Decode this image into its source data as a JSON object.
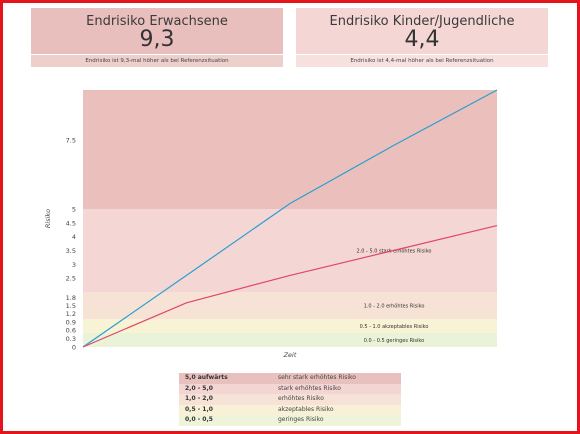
{
  "cards": [
    {
      "title": "Endrisiko Erwachsene",
      "value": "9,3",
      "note": "Endrisiko ist 9,3-mal höher als bei Referenzsituation"
    },
    {
      "title": "Endrisiko Kinder/Jugendliche",
      "value": "4,4",
      "note": "Endrisiko ist 4,4-mal höher als bei Referenzsituation"
    }
  ],
  "colors": {
    "band_high": "#ebc0bc",
    "band_strong": "#f4d7d5",
    "band_elevated": "#f6e3d5",
    "band_acceptable": "#f9f3d6",
    "band_low": "#eaf2d8",
    "line_adult": "#2a9fd0",
    "line_child": "#e0476a",
    "frame": "#e5141b"
  },
  "chart_data": {
    "type": "line",
    "xlabel": "Zeit",
    "ylabel": "Risiko",
    "y_ticks": [
      {
        "label": "0",
        "v": 0
      },
      {
        "label": "0.3",
        "v": 0.3
      },
      {
        "label": "0.6",
        "v": 0.6
      },
      {
        "label": "0.9",
        "v": 0.9
      },
      {
        "label": "1.2",
        "v": 1.2
      },
      {
        "label": "1.5",
        "v": 1.5
      },
      {
        "label": "1.8",
        "v": 1.8
      },
      {
        "label": "2.5",
        "v": 2.5
      },
      {
        "label": "3",
        "v": 3
      },
      {
        "label": "3.5",
        "v": 3.5
      },
      {
        "label": "4",
        "v": 4
      },
      {
        "label": "4.5",
        "v": 4.5
      },
      {
        "label": "5",
        "v": 5
      },
      {
        "label": "7.5",
        "v": 7.5
      }
    ],
    "bands": [
      {
        "from": 5,
        "to": 9.3,
        "label": "",
        "color_key": "band_high"
      },
      {
        "from": 2,
        "to": 5,
        "label": "2.0 - 5.0  stark erhöhtes Risiko",
        "color_key": "band_strong"
      },
      {
        "from": 1,
        "to": 2,
        "label": "1.0 - 2.0  erhöhtes Risiko",
        "color_key": "band_elevated"
      },
      {
        "from": 0.5,
        "to": 1,
        "label": "0.5 - 1.0  akzeptables Risiko",
        "color_key": "band_acceptable"
      },
      {
        "from": 0,
        "to": 0.5,
        "label": "0.0 - 0.5  geringes Risiko",
        "color_key": "band_low"
      }
    ],
    "series": [
      {
        "color_key": "line_adult",
        "x": [
          0,
          0.25,
          0.5,
          0.75,
          1
        ],
        "y": [
          0,
          2.6,
          5.2,
          7.3,
          9.3
        ]
      },
      {
        "color_key": "line_child",
        "x": [
          0,
          0.25,
          0.5,
          0.75,
          1
        ],
        "y": [
          0,
          1.6,
          2.6,
          3.5,
          4.4
        ]
      }
    ]
  },
  "legend": [
    {
      "range": "5,0 aufwärts",
      "desc": "sehr stark erhöhtes Risiko",
      "color": "#e8c0bd"
    },
    {
      "range": "2,0 - 5,0",
      "desc": "stark erhöhtes Risiko",
      "color": "#f3d6d4"
    },
    {
      "range": "1,0 - 2,0",
      "desc": "erhöhtes Risiko",
      "color": "#f6e2d6"
    },
    {
      "range": "0,5 - 1,0",
      "desc": "akzeptables Risiko",
      "color": "#f8f1d8"
    },
    {
      "range": "0,0 - 0,5",
      "desc": "geringes Risiko",
      "color": "#eef3da"
    }
  ]
}
